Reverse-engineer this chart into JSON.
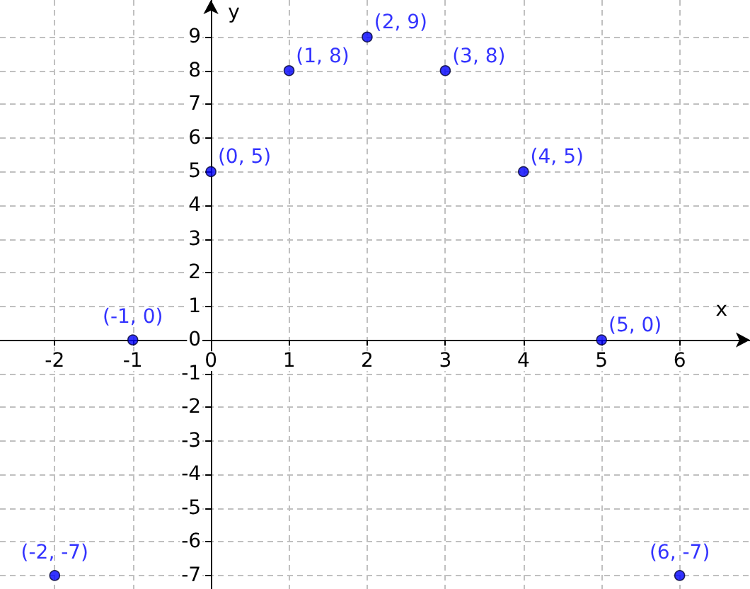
{
  "chart_data": {
    "type": "scatter",
    "xlabel": "x",
    "ylabel": "y",
    "x": [
      -2,
      -1,
      0,
      1,
      2,
      3,
      4,
      5,
      6
    ],
    "series": [
      {
        "color": "#0000ff",
        "values": [
          -7,
          0,
          5,
          8,
          9,
          8,
          5,
          0,
          -7
        ],
        "value_labels": [
          "(-2, -7)",
          "(-1, 0)",
          "(0, 5)",
          "(1, 8)",
          "(2, 9)",
          "(3, 8)",
          "(4, 5)",
          "(5, 0)",
          "(6, -7)"
        ]
      }
    ],
    "xlim": [
      -2.7,
      6.9
    ],
    "xticks": [
      -2,
      -1,
      0,
      1,
      2,
      3,
      4,
      5,
      6
    ],
    "ylim": [
      -7.4,
      10.1
    ],
    "yticks": [
      -7,
      -6,
      -5,
      -4,
      -3,
      -2,
      -1,
      0,
      1,
      2,
      3,
      4,
      5,
      6,
      7,
      8,
      9
    ],
    "grid": true,
    "marker": "circle"
  }
}
